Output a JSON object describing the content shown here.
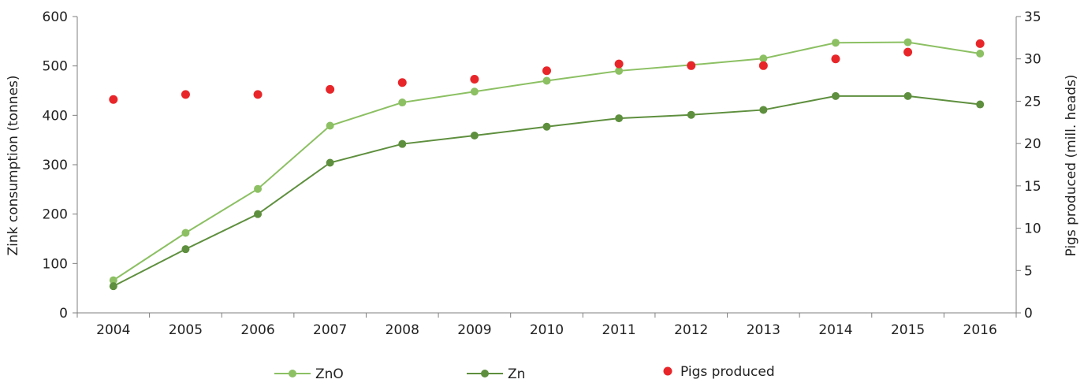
{
  "chart_data": {
    "type": "line",
    "categories": [
      "2004",
      "2005",
      "2006",
      "2007",
      "2008",
      "2009",
      "2010",
      "2011",
      "2012",
      "2013",
      "2014",
      "2015",
      "2016"
    ],
    "series": [
      {
        "name": "ZnO",
        "axis": "left",
        "kind": "line-marker",
        "color": "#8cc063",
        "values": [
          66,
          162,
          251,
          379,
          426,
          448,
          470,
          490,
          502,
          515,
          547,
          548,
          525
        ]
      },
      {
        "name": "Zn",
        "axis": "left",
        "kind": "line-marker",
        "color": "#5e8f3e",
        "values": [
          54,
          129,
          200,
          304,
          342,
          359,
          377,
          394,
          401,
          411,
          439,
          439,
          422
        ]
      },
      {
        "name": "Pigs produced",
        "axis": "right",
        "kind": "marker",
        "color": "#e8262a",
        "values": [
          25.2,
          25.8,
          25.8,
          26.4,
          27.2,
          27.6,
          28.6,
          29.4,
          29.2,
          29.2,
          30.0,
          30.8,
          31.8
        ]
      }
    ],
    "ylabel": "Zink consumption  (tonnes)",
    "y2label": "Pigs produced (mill. heads)",
    "ylim": [
      0,
      600
    ],
    "yticks": [
      0,
      100,
      200,
      300,
      400,
      500,
      600
    ],
    "y2lim": [
      0,
      35
    ],
    "y2ticks": [
      0,
      5,
      10,
      15,
      20,
      25,
      30,
      35
    ],
    "grid": false,
    "legend": "bottom"
  }
}
